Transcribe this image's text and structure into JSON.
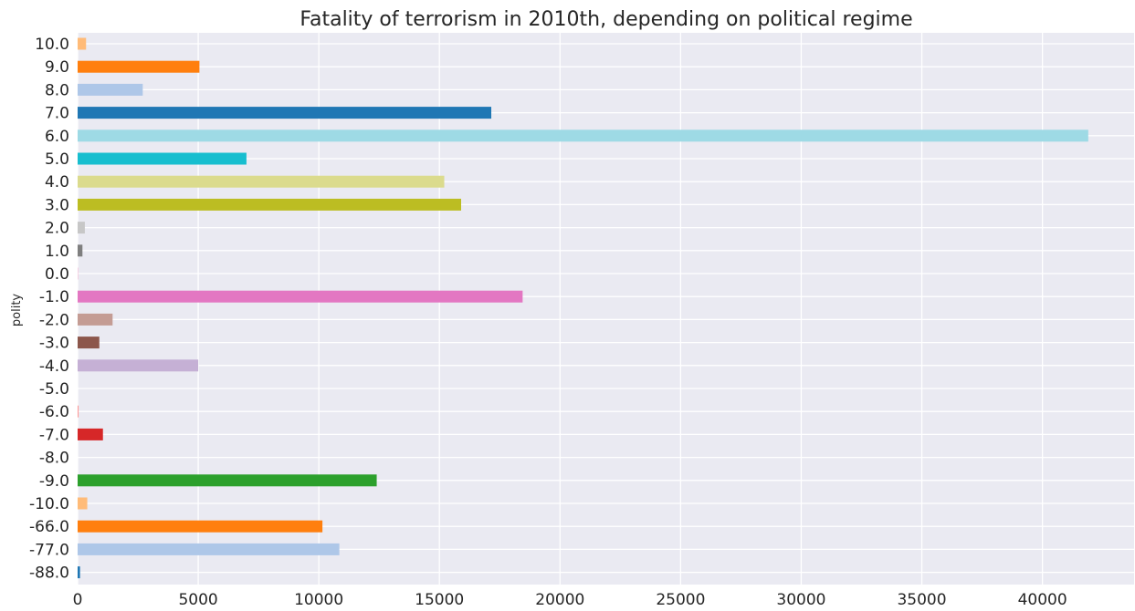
{
  "chart_data": {
    "type": "bar",
    "orientation": "horizontal",
    "title": "Fatality of terrorism in 2010th, depending on political regime",
    "xlabel": "",
    "ylabel": "polity",
    "xlim": [
      0,
      43800
    ],
    "x_ticks": [
      0,
      5000,
      10000,
      15000,
      20000,
      25000,
      30000,
      35000,
      40000
    ],
    "x_tick_labels": [
      "0",
      "5000",
      "10000",
      "15000",
      "20000",
      "25000",
      "30000",
      "35000",
      "40000"
    ],
    "grid": true,
    "legend": "none",
    "categories": [
      "10.0",
      "9.0",
      "8.0",
      "7.0",
      "6.0",
      "5.0",
      "4.0",
      "3.0",
      "2.0",
      "1.0",
      "0.0",
      "-1.0",
      "-2.0",
      "-3.0",
      "-4.0",
      "-5.0",
      "-6.0",
      "-7.0",
      "-8.0",
      "-9.0",
      "-10.0",
      "-66.0",
      "-77.0",
      "-88.0"
    ],
    "values": [
      350,
      5050,
      2700,
      17150,
      41900,
      7000,
      15200,
      15900,
      300,
      200,
      20,
      18450,
      1450,
      900,
      5000,
      0,
      40,
      1050,
      0,
      12400,
      400,
      10150,
      10850,
      100
    ],
    "colors": [
      "#ffbb78",
      "#ff7f0e",
      "#aec7e8",
      "#1f77b4",
      "#9edae5",
      "#17becf",
      "#dbdb8d",
      "#bcbd22",
      "#c7c7c7",
      "#7f7f7f",
      "#f7b6d2",
      "#e377c2",
      "#c49c94",
      "#8c564b",
      "#c5b0d5",
      "#9467bd",
      "#ff9896",
      "#d62728",
      "#98df8a",
      "#2ca02c",
      "#ffbb78",
      "#ff7f0e",
      "#aec7e8",
      "#1f77b4"
    ],
    "plot_background": "#eaeaf2",
    "grid_color": "#ffffff"
  }
}
